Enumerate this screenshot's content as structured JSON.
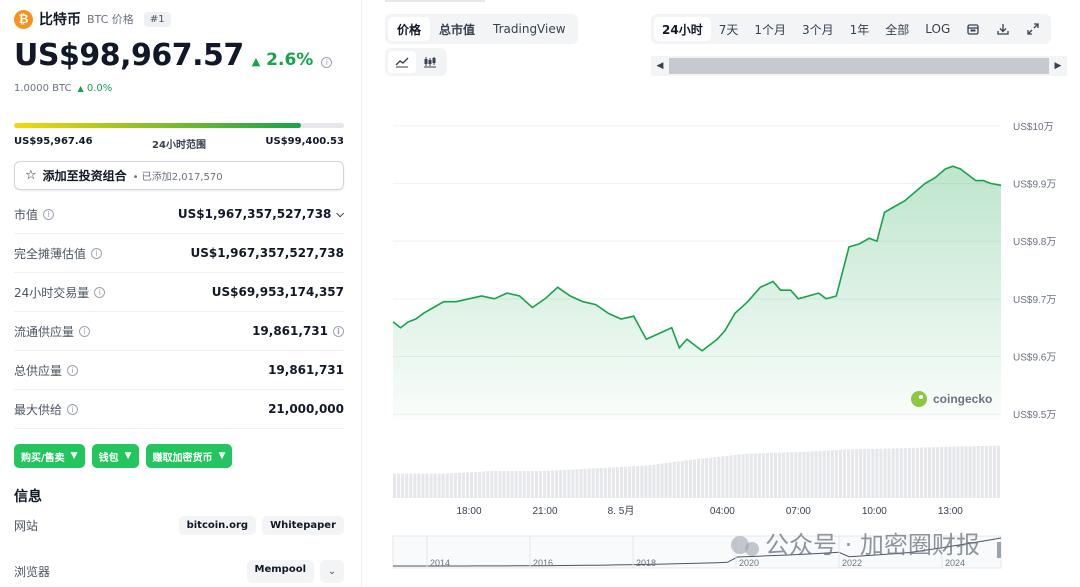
{
  "coin": {
    "name": "比特币",
    "symbol_label": "BTC 价格",
    "rank": "#1",
    "logo_glyph": "₿",
    "price": "US$98,967.57",
    "change_pct": "2.6%",
    "change_icon": "triangle-up",
    "btc_value": "1.0000 BTC",
    "btc_change": "0.0%"
  },
  "range": {
    "low": "US$95,967.46",
    "label": "24小时范围",
    "high": "US$99,400.53",
    "position_fraction": 0.87
  },
  "portfolio": {
    "label": "添加至投资组合",
    "sub": "• 已添加2,017,570"
  },
  "stats": [
    {
      "label": "市值",
      "value": "US$1,967,357,527,738",
      "chevron": true,
      "info_right": false
    },
    {
      "label": "完全摊薄估值",
      "value": "US$1,967,357,527,738",
      "chevron": false,
      "info_right": false
    },
    {
      "label": "24小时交易量",
      "value": "US$69,953,174,357",
      "chevron": false,
      "info_right": false
    },
    {
      "label": "流通供应量",
      "value": "19,861,731",
      "chevron": false,
      "info_right": true
    },
    {
      "label": "总供应量",
      "value": "19,861,731",
      "chevron": false,
      "info_right": false
    },
    {
      "label": "最大供给",
      "value": "21,000,000",
      "chevron": false,
      "info_right": false
    }
  ],
  "actions": [
    {
      "label": "购买/售卖"
    },
    {
      "label": "钱包"
    },
    {
      "label": "赚取加密货币"
    }
  ],
  "info": {
    "title": "信息",
    "website_label": "网站",
    "website_links": [
      "bitcoin.org",
      "Whitepaper"
    ],
    "explorer_label": "浏览器",
    "explorer_links": [
      "Mempool"
    ]
  },
  "chart_tabs": [
    "价格",
    "总市值",
    "TradingView"
  ],
  "chart_tab_active": 0,
  "chart_types": [
    "line-chart-icon",
    "candlestick-chart-icon"
  ],
  "time_ranges": [
    "24小时",
    "7天",
    "1个月",
    "3个月",
    "1年",
    "全部",
    "LOG"
  ],
  "time_range_active": 0,
  "toolbar_icons": [
    "calendar-icon",
    "download-icon",
    "expand-icon"
  ],
  "watermark": "coingecko",
  "overlay_text": "公众号 · 加密圈财报",
  "colors": {
    "accent_green": "#16a34a",
    "button_green": "#22c55e",
    "btc_orange": "#f7931a"
  },
  "chart_data": {
    "type": "area",
    "title": "",
    "ylabel": "",
    "y_ticks": [
      "US$10万",
      "US$9.9万",
      "US$9.8万",
      "US$9.7万",
      "US$9.6万",
      "US$9.5万"
    ],
    "y_tick_values": [
      100000,
      99000,
      98000,
      97000,
      96000,
      95000
    ],
    "x_ticks": [
      "18:00",
      "21:00",
      "8. 5月",
      "04:00",
      "07:00",
      "10:00",
      "13:00"
    ],
    "x_tick_hours": [
      3,
      6,
      9,
      13,
      16,
      19,
      22
    ],
    "ylim": [
      94900,
      100100
    ],
    "xlim": [
      0,
      24
    ],
    "grid": true,
    "series": [
      {
        "x": [
          0,
          0.3,
          0.6,
          0.9,
          1.2,
          1.6,
          2.0,
          2.5,
          3.0,
          3.5,
          4.0,
          4.5,
          5.0,
          5.5,
          6.0,
          6.5,
          7.0,
          7.5,
          8.0,
          8.5,
          9.0,
          9.5,
          10.0,
          10.5,
          11.0,
          11.3,
          11.6,
          11.9,
          12.2,
          12.5,
          12.8,
          13.1,
          13.5,
          14.0,
          14.5,
          15.0,
          15.3,
          15.7,
          16.0,
          16.4,
          16.8,
          17.1,
          17.5,
          18.0,
          18.4,
          18.8,
          19.1,
          19.4,
          19.8,
          20.2,
          20.6,
          21.0,
          21.4,
          21.8,
          22.1,
          22.4,
          22.7,
          23.0,
          23.3,
          23.6,
          24.0
        ],
        "y": [
          96600,
          96500,
          96600,
          96650,
          96750,
          96850,
          96950,
          96950,
          97000,
          97050,
          97000,
          97100,
          97050,
          96850,
          97000,
          97200,
          97050,
          96950,
          96900,
          96750,
          96650,
          96700,
          96300,
          96400,
          96500,
          96150,
          96300,
          96200,
          96100,
          96200,
          96300,
          96450,
          96750,
          96950,
          97200,
          97300,
          97150,
          97150,
          97000,
          97050,
          97100,
          97000,
          97050,
          97900,
          97950,
          98050,
          98000,
          98500,
          98600,
          98700,
          98850,
          99000,
          99100,
          99250,
          99300,
          99250,
          99150,
          99050,
          99050,
          99000,
          98967.57
        ]
      }
    ],
    "volume": {
      "x": [
        0,
        2,
        4,
        6,
        8,
        10,
        12,
        14,
        16,
        18,
        20,
        22,
        24
      ],
      "values": [
        0.45,
        0.45,
        0.5,
        0.5,
        0.55,
        0.6,
        0.72,
        0.82,
        0.85,
        0.9,
        0.92,
        0.95,
        0.97
      ]
    },
    "overview": {
      "x_ticks": [
        "2014",
        "2016",
        "2018",
        "2020",
        "2022",
        "2024"
      ]
    }
  }
}
